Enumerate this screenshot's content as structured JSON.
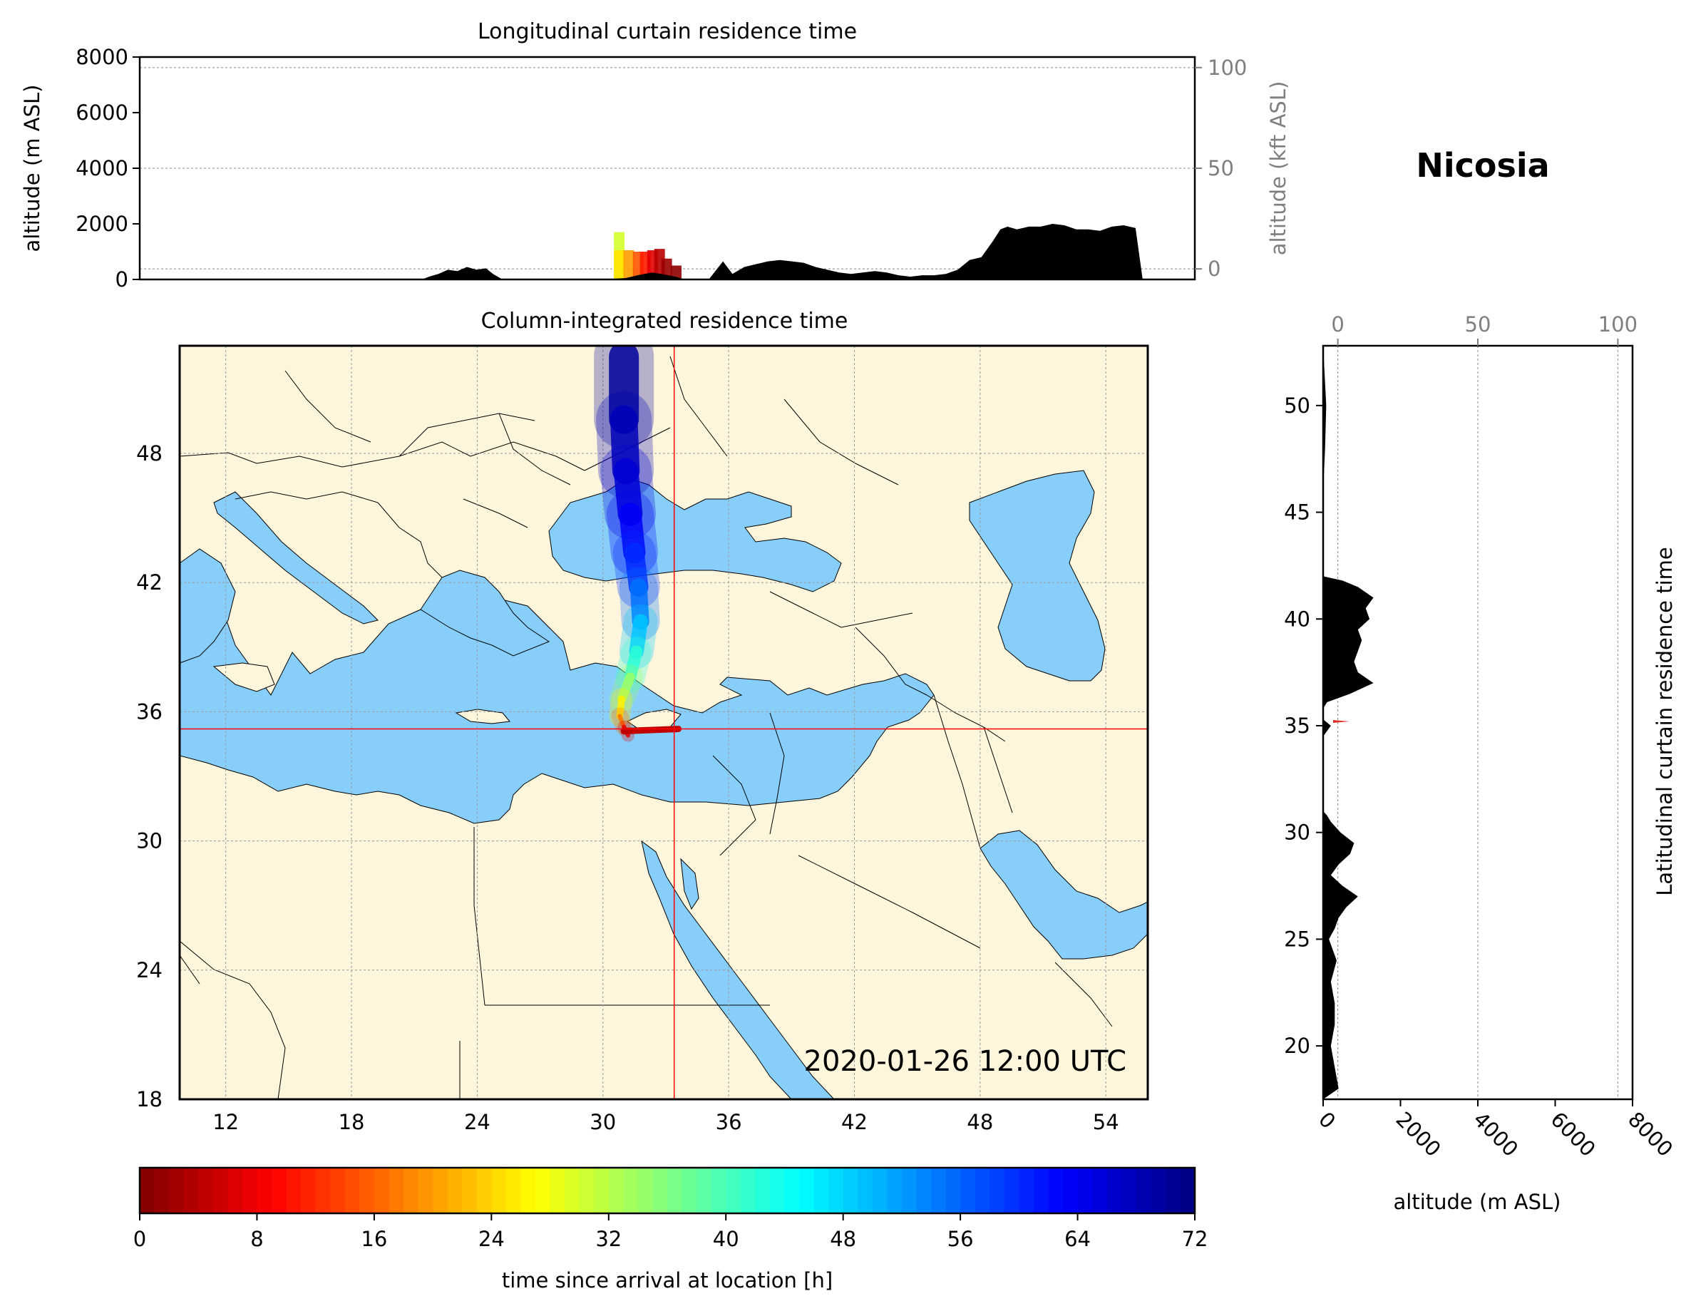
{
  "figure": {
    "location_title": "Nicosia",
    "timestamp": "2020-01-26 12:00 UTC"
  },
  "chart_data": [
    {
      "id": "longitudinal",
      "type": "area",
      "title": "Longitudinal curtain residence time",
      "ylabel": "altitude (m ASL)",
      "ylabel_right": "altitude (kft ASL)",
      "xlim": [
        11,
        55.5
      ],
      "ylim": [
        0,
        8000
      ],
      "yticks": [
        "0",
        "2000",
        "4000",
        "6000",
        "8000"
      ],
      "yticks_right": [
        "0",
        "50",
        "100"
      ],
      "grid": "horizontal dotted",
      "terrain": {
        "x": [
          11,
          22.9,
          23.2,
          23.6,
          24,
          24.4,
          24.8,
          25.2,
          25.6,
          25.9,
          26.3,
          27.1,
          30.5,
          31.5,
          32,
          32.6,
          33,
          33.6,
          34,
          35,
          35.6,
          36,
          36.5,
          37,
          37.5,
          38,
          38.5,
          39,
          39.5,
          40,
          40.5,
          41,
          41.5,
          42,
          42.5,
          43,
          43.5,
          44,
          44.5,
          45,
          45.5,
          46,
          46.5,
          47,
          47.3,
          47.6,
          48,
          48.5,
          49,
          49.5,
          50,
          50.5,
          51,
          51.5,
          52,
          52.5,
          53,
          53.3,
          55.5
        ],
        "y": [
          0,
          0,
          100,
          200,
          350,
          300,
          450,
          350,
          400,
          200,
          0,
          0,
          0,
          50,
          150,
          250,
          200,
          100,
          0,
          0,
          650,
          200,
          450,
          550,
          650,
          700,
          650,
          600,
          450,
          350,
          250,
          200,
          250,
          300,
          250,
          150,
          100,
          150,
          150,
          200,
          350,
          700,
          800,
          1400,
          1800,
          1900,
          1800,
          1900,
          1900,
          2000,
          1950,
          1800,
          1800,
          1750,
          1900,
          1950,
          1850,
          0,
          0
        ]
      },
      "plume": [
        {
          "x": 31.0,
          "y": 1700,
          "t": 30
        },
        {
          "x": 31.0,
          "y": 1050,
          "t": 25
        },
        {
          "x": 31.4,
          "y": 1050,
          "t": 20
        },
        {
          "x": 31.8,
          "y": 1000,
          "t": 15
        },
        {
          "x": 32.1,
          "y": 1000,
          "t": 11
        },
        {
          "x": 32.4,
          "y": 1050,
          "t": 7
        },
        {
          "x": 32.7,
          "y": 1100,
          "t": 4
        },
        {
          "x": 33.0,
          "y": 750,
          "t": 2
        },
        {
          "x": 33.4,
          "y": 500,
          "t": 1
        }
      ]
    },
    {
      "id": "column",
      "type": "heatmap",
      "title": "Column-integrated residence time",
      "xlim": [
        9.8,
        56
      ],
      "ylim": [
        18,
        53
      ],
      "xticks": [
        "12",
        "18",
        "24",
        "30",
        "36",
        "42",
        "48",
        "54"
      ],
      "yticks": [
        "18",
        "24",
        "30",
        "36",
        "42",
        "48"
      ],
      "crosshair": {
        "lon": 33.4,
        "lat": 35.2
      },
      "land_color": "#fdf5dc",
      "water_color": "#87cefa",
      "trajectory": [
        {
          "lon": 31.2,
          "lat": 34.9,
          "t": 2
        },
        {
          "lon": 31.0,
          "lat": 35.3,
          "t": 12
        },
        {
          "lon": 30.8,
          "lat": 35.8,
          "t": 22
        },
        {
          "lon": 30.9,
          "lat": 36.6,
          "t": 30
        },
        {
          "lon": 31.3,
          "lat": 37.6,
          "t": 38
        },
        {
          "lon": 31.6,
          "lat": 38.8,
          "t": 46
        },
        {
          "lon": 31.8,
          "lat": 40.2,
          "t": 52
        },
        {
          "lon": 31.7,
          "lat": 41.8,
          "t": 58
        },
        {
          "lon": 31.5,
          "lat": 43.4,
          "t": 62
        },
        {
          "lon": 31.3,
          "lat": 45.2,
          "t": 65
        },
        {
          "lon": 31.1,
          "lat": 47.2,
          "t": 67
        },
        {
          "lon": 31.0,
          "lat": 49.6,
          "t": 69
        },
        {
          "lon": 31.0,
          "lat": 52.5,
          "t": 71
        }
      ]
    },
    {
      "id": "latitudinal",
      "type": "area",
      "title": "Latitudinal curtain residence time",
      "xlabel": "altitude (m ASL)",
      "xlim": [
        0,
        8000
      ],
      "xticks": [
        "0",
        "2000",
        "4000",
        "6000",
        "8000"
      ],
      "xticks_top": [
        "0",
        "50",
        "100"
      ],
      "ylim": [
        17.5,
        52.8
      ],
      "yticks": [
        "20",
        "25",
        "30",
        "35",
        "40",
        "45",
        "50"
      ],
      "terrain": {
        "lat": [
          17.5,
          18,
          19,
          20,
          21,
          22,
          23,
          24,
          25,
          25.5,
          26,
          26.5,
          27,
          27.5,
          28,
          28.5,
          29,
          29.5,
          30,
          30.5,
          30.8,
          31,
          34.5,
          35,
          35.3,
          35.8,
          36.1,
          36.5,
          37,
          37.5,
          38,
          38.5,
          39,
          39.5,
          40,
          40.5,
          41,
          41.5,
          41.8,
          42,
          46,
          48,
          50,
          52.8
        ],
        "alt": [
          0,
          400,
          300,
          200,
          300,
          300,
          200,
          350,
          150,
          300,
          400,
          600,
          900,
          500,
          200,
          400,
          700,
          800,
          450,
          200,
          100,
          0,
          0,
          200,
          0,
          0,
          100,
          700,
          1300,
          900,
          800,
          900,
          1000,
          900,
          1200,
          1100,
          1300,
          900,
          500,
          0,
          0,
          50,
          80,
          0
        ]
      }
    },
    {
      "id": "colorbar",
      "type": "colorbar",
      "xlabel": "time since arrival at location [h]",
      "range": [
        0,
        72
      ],
      "ticks": [
        "0",
        "8",
        "16",
        "24",
        "32",
        "40",
        "48",
        "56",
        "64",
        "72"
      ]
    }
  ]
}
